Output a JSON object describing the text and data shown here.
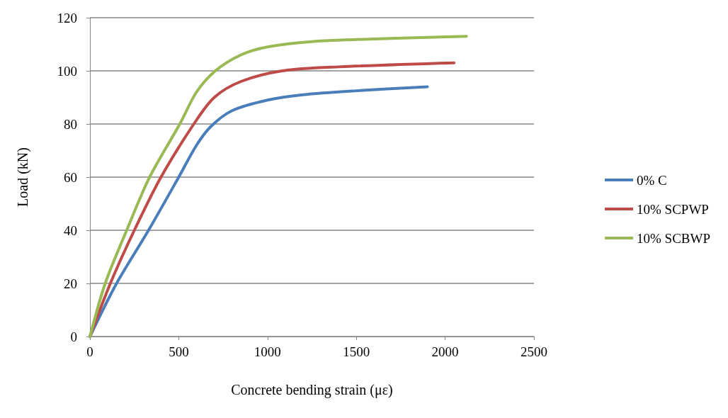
{
  "chart_data": {
    "type": "line",
    "xlabel": "Concrete bending strain (με)",
    "ylabel": "Load (kN)",
    "xlim": [
      0,
      2500
    ],
    "xticks": [
      0,
      500,
      1000,
      1500,
      2000,
      2500
    ],
    "ylim": [
      0,
      120
    ],
    "yticks": [
      0,
      20,
      40,
      60,
      80,
      100,
      120
    ],
    "grid": "y",
    "legend": "right",
    "marker": "none",
    "line_style": "solid",
    "series": [
      {
        "name": "0% C",
        "color": "#4a7ebb",
        "x": [
          0,
          150,
          330,
          500,
          600,
          680,
          800,
          1000,
          1200,
          1500,
          1900
        ],
        "values": [
          0,
          20,
          40,
          60,
          72,
          79,
          85,
          89,
          91,
          92.5,
          94
        ]
      },
      {
        "name": "10% SCPWP",
        "color": "#be4b48",
        "x": [
          0,
          115,
          250,
          400,
          585,
          700,
          850,
          1083,
          1400,
          2050
        ],
        "values": [
          0,
          20,
          40,
          60,
          80,
          90,
          96,
          100,
          101.5,
          103
        ]
      },
      {
        "name": "10% SCBWP",
        "color": "#98b954",
        "x": [
          0,
          86,
          207,
          336,
          506,
          600,
          706,
          850,
          1000,
          1250,
          1600,
          2120
        ],
        "values": [
          0,
          20,
          40,
          60,
          80,
          92,
          100,
          106,
          109,
          111,
          112,
          113
        ]
      }
    ]
  }
}
